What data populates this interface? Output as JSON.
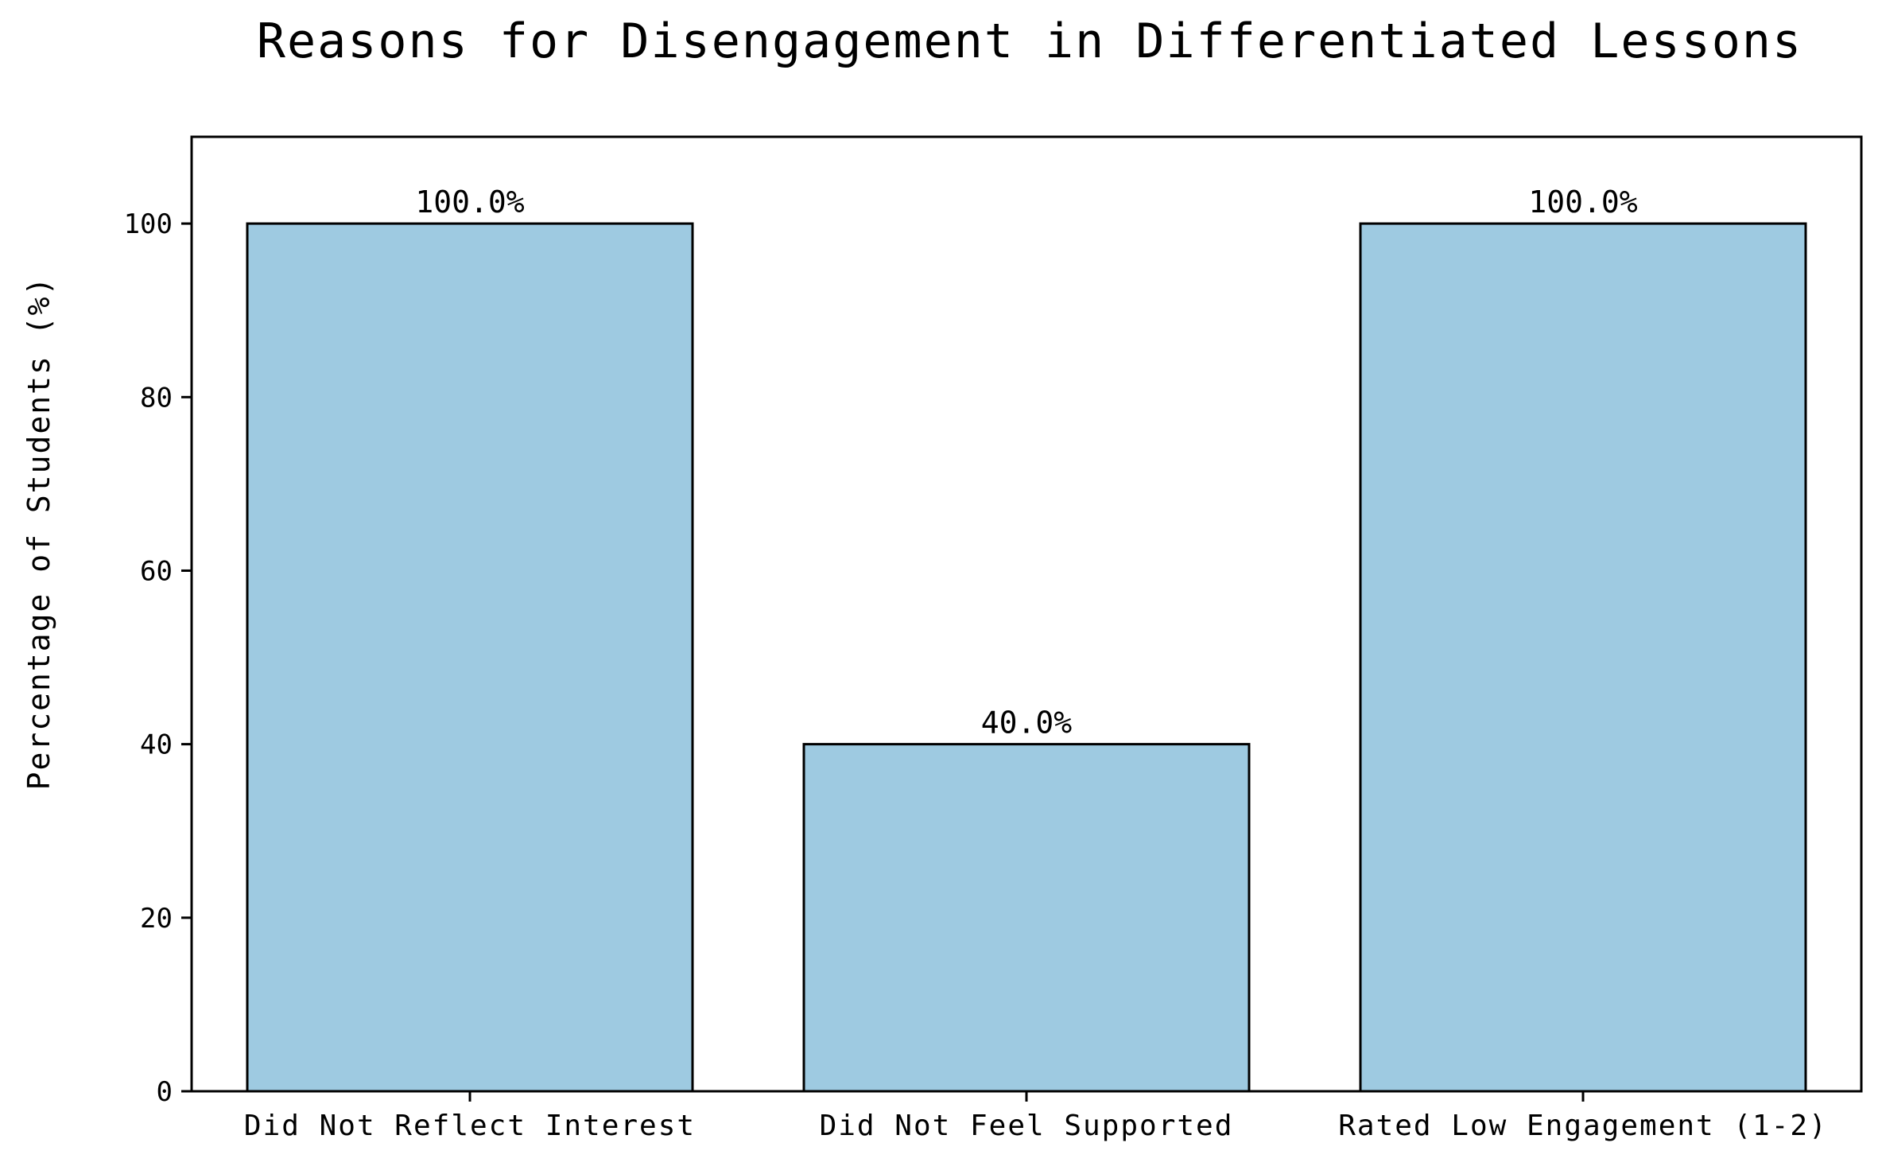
{
  "chart_data": {
    "type": "bar",
    "title": "Reasons for Disengagement in Differentiated Lessons",
    "xlabel": "",
    "ylabel": "Percentage of Students (%)",
    "categories": [
      "Did Not Reflect Interest",
      "Did Not Feel Supported",
      "Rated Low Engagement (1-2)"
    ],
    "values": [
      100.0,
      40.0,
      100.0
    ],
    "data_labels": [
      "100.0%",
      "40.0%",
      "100.0%"
    ],
    "ylim": [
      0,
      110
    ],
    "yticks": [
      0,
      20,
      40,
      60,
      80,
      100
    ],
    "ytick_labels": [
      "0",
      "20",
      "40",
      "60",
      "80",
      "100"
    ],
    "grid": false,
    "legend": "none",
    "bar_color": "#9ecae1",
    "edge_color": "#000000"
  }
}
